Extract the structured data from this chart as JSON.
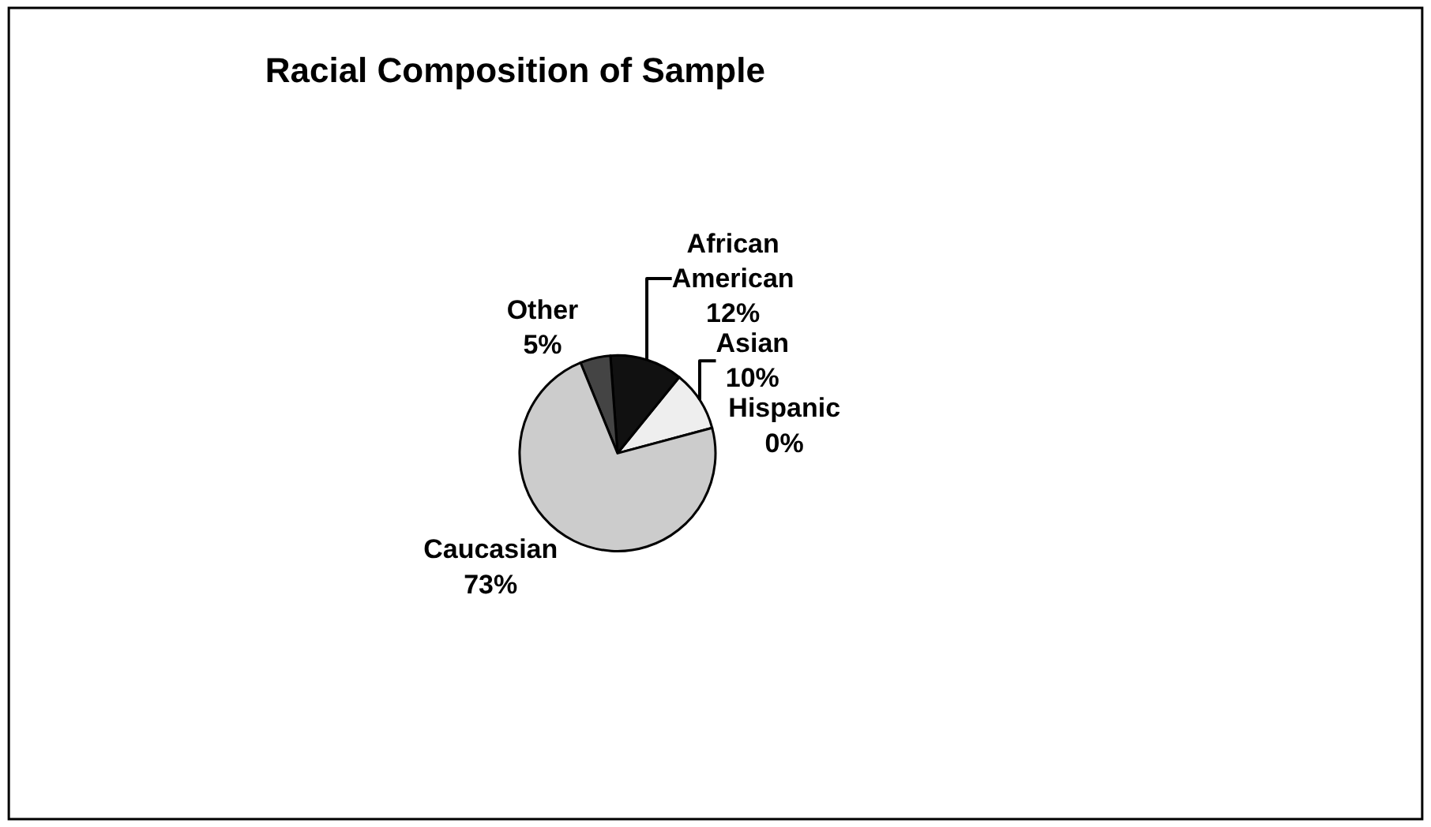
{
  "chart_data": {
    "type": "pie",
    "title": "Racial Composition of Sample",
    "categories": [
      "Hispanic",
      "Asian",
      "African American",
      "Other",
      "Caucasian"
    ],
    "values": [
      0,
      10,
      12,
      5,
      73
    ],
    "value_labels": [
      "0%",
      "10%",
      "12%",
      "5%",
      "73%"
    ],
    "colors": [
      "#ffffff",
      "#eeeeee",
      "#111111",
      "#444444",
      "#cccccc"
    ],
    "legend": false
  }
}
